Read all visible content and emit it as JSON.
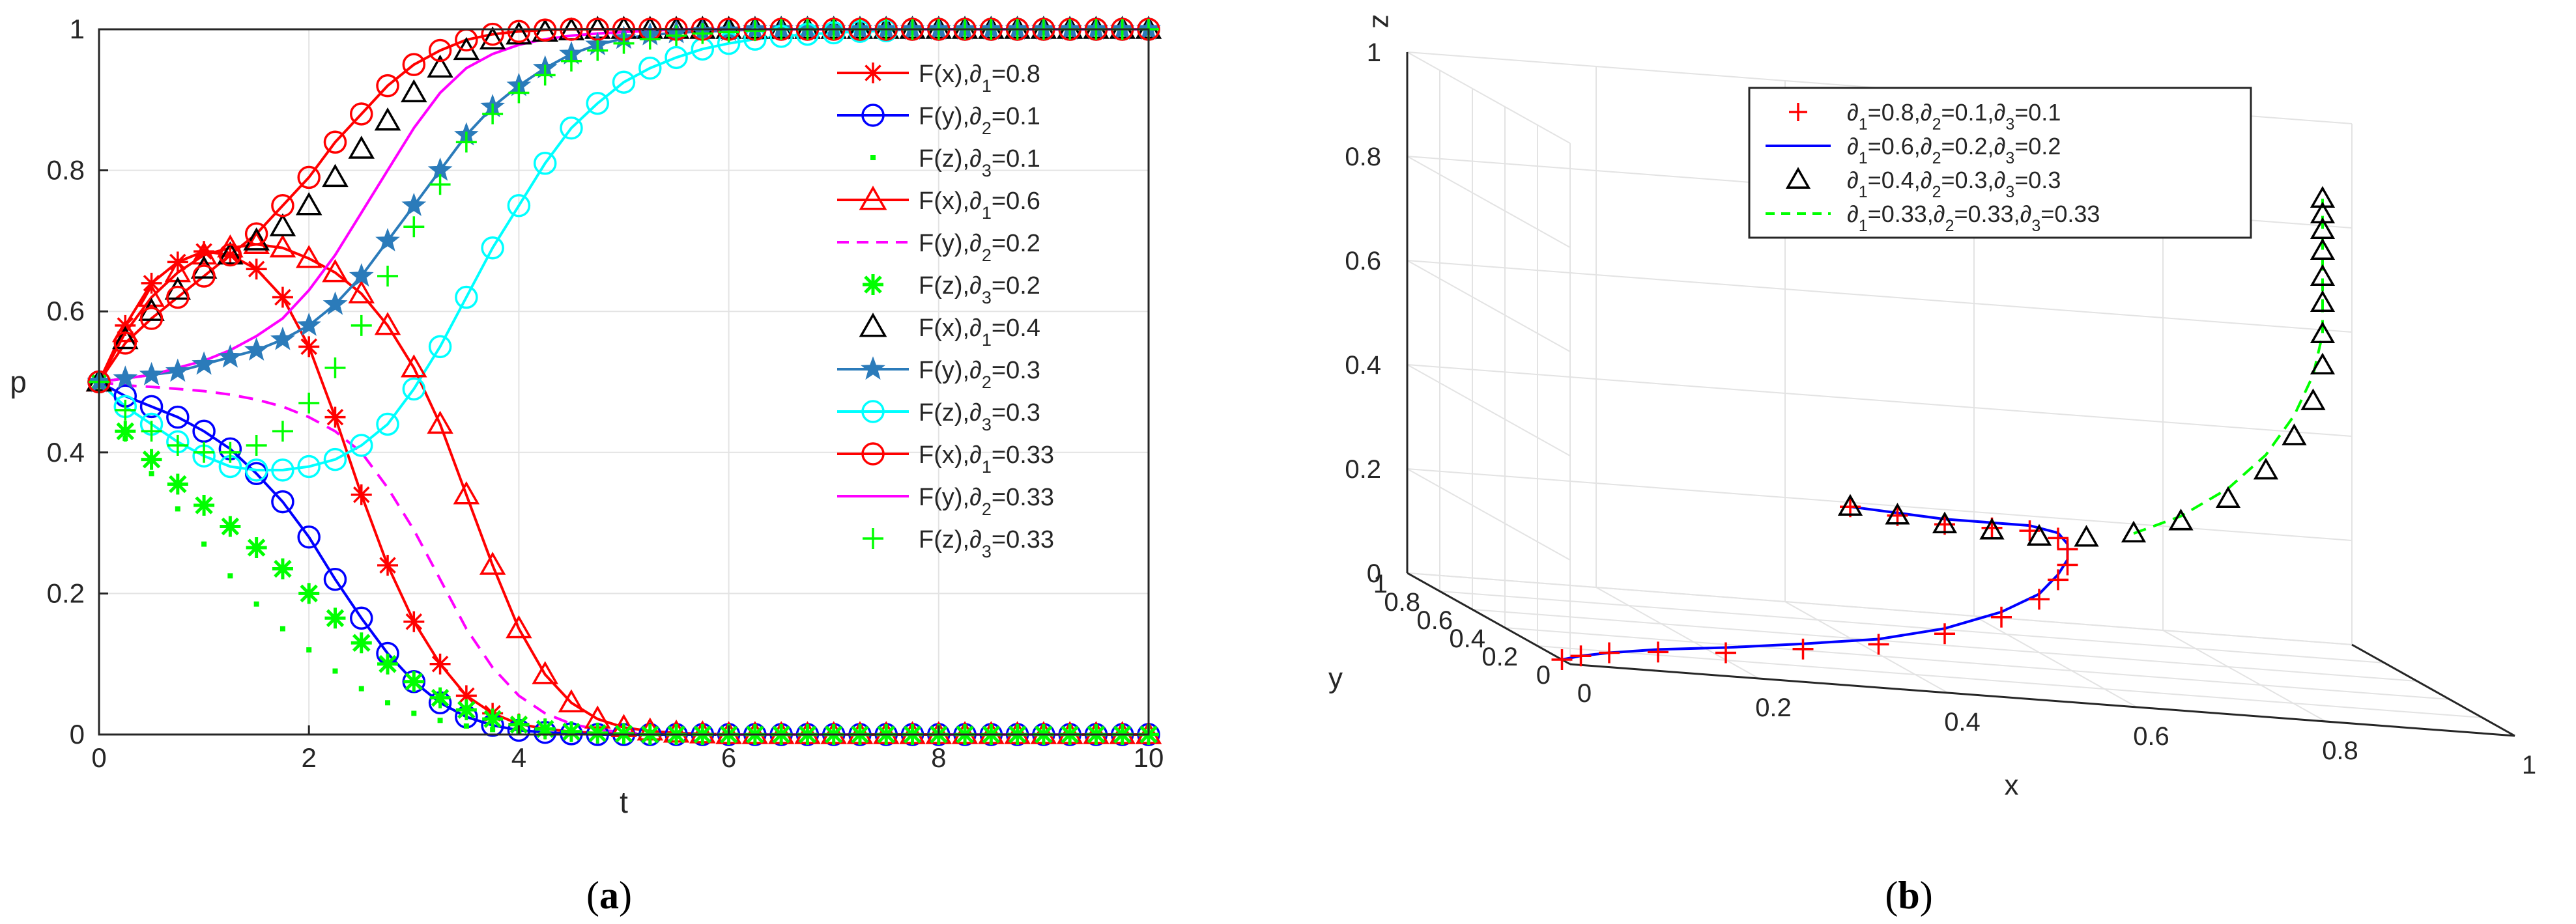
{
  "panel_labels": {
    "a": "a",
    "b": "b"
  },
  "colors": {
    "red": "#ff0000",
    "blue": "#0000ff",
    "green": "#00ff00",
    "black": "#000000",
    "steelblue": "#2b7bba",
    "cyan": "#00ffff",
    "magenta": "#ff00ff",
    "axis": "#262626",
    "grid": "#e3e3e3"
  },
  "chart_data": [
    {
      "type": "line",
      "panel": "a",
      "xlabel": "t",
      "ylabel": "p",
      "xlim": [
        0,
        10
      ],
      "ylim": [
        0,
        1
      ],
      "xticks": [
        "0",
        "2",
        "4",
        "6",
        "8",
        "10"
      ],
      "yticks": [
        "0",
        "0.2",
        "0.4",
        "0.6",
        "0.8",
        "1"
      ],
      "grid": true,
      "legend_position": "top-right",
      "x": [
        0,
        0.25,
        0.5,
        0.75,
        1,
        1.25,
        1.5,
        1.75,
        2,
        2.25,
        2.5,
        2.75,
        3,
        3.25,
        3.5,
        3.75,
        4,
        4.25,
        4.5,
        4.75,
        5,
        5.25,
        5.5,
        5.75,
        6,
        6.25,
        6.5,
        6.75,
        7,
        7.25,
        7.5,
        7.75,
        8,
        8.25,
        8.5,
        8.75,
        9,
        9.25,
        9.5,
        9.75,
        10
      ],
      "series": [
        {
          "name": "F(x),∂1=0.8",
          "color": "#ff0000",
          "marker": "star",
          "values": [
            0.5,
            0.58,
            0.64,
            0.67,
            0.685,
            0.68,
            0.66,
            0.62,
            0.55,
            0.45,
            0.34,
            0.24,
            0.16,
            0.1,
            0.055,
            0.03,
            0.015,
            0.008,
            0.004,
            0.002,
            0.001,
            0,
            0,
            0,
            0,
            0,
            0,
            0,
            0,
            0,
            0,
            0,
            0,
            0,
            0,
            0,
            0,
            0,
            0,
            0,
            0
          ]
        },
        {
          "name": "F(y),∂2=0.1",
          "color": "#0000ff",
          "marker": "circle",
          "values": [
            0.5,
            0.48,
            0.465,
            0.45,
            0.43,
            0.405,
            0.37,
            0.33,
            0.28,
            0.22,
            0.165,
            0.115,
            0.075,
            0.045,
            0.025,
            0.013,
            0.006,
            0.003,
            0.001,
            0,
            0,
            0,
            0,
            0,
            0,
            0,
            0,
            0,
            0,
            0,
            0,
            0,
            0,
            0,
            0,
            0,
            0,
            0,
            0,
            0,
            0
          ]
        },
        {
          "name": "F(z),∂3=0.1",
          "color": "#00ff00",
          "marker": "dot",
          "values": [
            0.5,
            0.42,
            0.37,
            0.32,
            0.27,
            0.225,
            0.185,
            0.15,
            0.12,
            0.09,
            0.065,
            0.045,
            0.03,
            0.02,
            0.012,
            0.007,
            0.004,
            0.002,
            0.001,
            0,
            0,
            0,
            0,
            0,
            0,
            0,
            0,
            0,
            0,
            0,
            0,
            0,
            0,
            0,
            0,
            0,
            0,
            0,
            0,
            0,
            0
          ]
        },
        {
          "name": "F(x),∂1=0.6",
          "color": "#ff0000",
          "marker": "triangle",
          "values": [
            0.5,
            0.57,
            0.62,
            0.655,
            0.68,
            0.69,
            0.695,
            0.69,
            0.675,
            0.655,
            0.625,
            0.58,
            0.52,
            0.44,
            0.34,
            0.24,
            0.15,
            0.085,
            0.045,
            0.022,
            0.01,
            0.005,
            0.002,
            0.001,
            0,
            0,
            0,
            0,
            0,
            0,
            0,
            0,
            0,
            0,
            0,
            0,
            0,
            0,
            0,
            0,
            0
          ]
        },
        {
          "name": "F(y),∂2=0.2",
          "color": "#ff00ff",
          "marker": "dashed",
          "values": [
            0.5,
            0.495,
            0.493,
            0.49,
            0.487,
            0.482,
            0.475,
            0.465,
            0.45,
            0.43,
            0.4,
            0.35,
            0.29,
            0.22,
            0.15,
            0.095,
            0.055,
            0.03,
            0.015,
            0.007,
            0.003,
            0.001,
            0,
            0,
            0,
            0,
            0,
            0,
            0,
            0,
            0,
            0,
            0,
            0,
            0,
            0,
            0,
            0,
            0,
            0,
            0
          ]
        },
        {
          "name": "F(z),∂3=0.2",
          "color": "#00ff00",
          "marker": "asterisk",
          "values": [
            0.5,
            0.43,
            0.39,
            0.355,
            0.325,
            0.295,
            0.265,
            0.235,
            0.2,
            0.165,
            0.13,
            0.1,
            0.075,
            0.052,
            0.035,
            0.022,
            0.014,
            0.008,
            0.004,
            0.002,
            0.001,
            0,
            0,
            0,
            0,
            0,
            0,
            0,
            0,
            0,
            0,
            0,
            0,
            0,
            0,
            0,
            0,
            0,
            0,
            0,
            0
          ]
        },
        {
          "name": "F(x),∂1=0.4",
          "color": "#000000",
          "marker": "triangle",
          "values": [
            0.5,
            0.56,
            0.6,
            0.63,
            0.66,
            0.68,
            0.7,
            0.72,
            0.75,
            0.79,
            0.83,
            0.87,
            0.91,
            0.945,
            0.97,
            0.985,
            0.992,
            0.996,
            0.998,
            1,
            1,
            1,
            1,
            1,
            1,
            1,
            1,
            1,
            1,
            1,
            1,
            1,
            1,
            1,
            1,
            1,
            1,
            1,
            1,
            1,
            1
          ]
        },
        {
          "name": "F(y),∂2=0.3",
          "color": "#2b7bba",
          "marker": "star5",
          "values": [
            0.5,
            0.505,
            0.51,
            0.515,
            0.525,
            0.535,
            0.545,
            0.56,
            0.58,
            0.61,
            0.65,
            0.7,
            0.75,
            0.8,
            0.85,
            0.89,
            0.92,
            0.945,
            0.965,
            0.978,
            0.987,
            0.992,
            0.995,
            0.997,
            0.998,
            1,
            1,
            1,
            1,
            1,
            1,
            1,
            1,
            1,
            1,
            1,
            1,
            1,
            1,
            1,
            1
          ]
        },
        {
          "name": "F(z),∂3=0.3",
          "color": "#00ffff",
          "marker": "circle",
          "values": [
            0.5,
            0.465,
            0.44,
            0.415,
            0.395,
            0.38,
            0.375,
            0.375,
            0.38,
            0.39,
            0.41,
            0.44,
            0.49,
            0.55,
            0.62,
            0.69,
            0.75,
            0.81,
            0.86,
            0.895,
            0.925,
            0.945,
            0.96,
            0.972,
            0.98,
            0.986,
            0.99,
            0.993,
            0.995,
            0.997,
            0.998,
            1,
            1,
            1,
            1,
            1,
            1,
            1,
            1,
            1,
            1
          ]
        },
        {
          "name": "F(x),∂1=0.33",
          "color": "#ff0000",
          "marker": "circle",
          "values": [
            0.5,
            0.555,
            0.59,
            0.62,
            0.65,
            0.68,
            0.71,
            0.75,
            0.79,
            0.84,
            0.88,
            0.92,
            0.95,
            0.97,
            0.985,
            0.993,
            0.997,
            0.999,
            1,
            1,
            1,
            1,
            1,
            1,
            1,
            1,
            1,
            1,
            1,
            1,
            1,
            1,
            1,
            1,
            1,
            1,
            1,
            1,
            1,
            1,
            1
          ]
        },
        {
          "name": "F(y),∂2=0.33",
          "color": "#ff00ff",
          "marker": "solid",
          "values": [
            0.5,
            0.505,
            0.51,
            0.52,
            0.53,
            0.545,
            0.565,
            0.59,
            0.63,
            0.68,
            0.74,
            0.8,
            0.86,
            0.91,
            0.945,
            0.965,
            0.978,
            0.986,
            0.991,
            0.994,
            0.996,
            0.998,
            1,
            1,
            1,
            1,
            1,
            1,
            1,
            1,
            1,
            1,
            1,
            1,
            1,
            1,
            1,
            1,
            1,
            1,
            1
          ]
        },
        {
          "name": "F(z),∂3=0.33",
          "color": "#00ff00",
          "marker": "plus",
          "values": [
            0.5,
            0.46,
            0.43,
            0.41,
            0.4,
            0.4,
            0.41,
            0.43,
            0.47,
            0.52,
            0.58,
            0.65,
            0.72,
            0.78,
            0.84,
            0.88,
            0.91,
            0.935,
            0.955,
            0.97,
            0.98,
            0.986,
            0.991,
            0.994,
            0.996,
            0.998,
            1,
            1,
            1,
            1,
            1,
            1,
            1,
            1,
            1,
            1,
            1,
            1,
            1,
            1,
            1
          ]
        }
      ]
    },
    {
      "type": "line3d",
      "panel": "b",
      "xlabel": "x",
      "ylabel": "y",
      "zlabel": "z",
      "xlim": [
        0,
        1
      ],
      "ylim": [
        0,
        1
      ],
      "zlim": [
        0,
        1
      ],
      "xticks": [
        "0",
        "0.2",
        "0.4",
        "0.6",
        "0.8",
        "1"
      ],
      "yticks": [
        "0",
        "0.2",
        "0.4",
        "0.6",
        "0.8",
        "1"
      ],
      "zticks": [
        "0",
        "0.2",
        "0.4",
        "0.6",
        "0.8",
        "1"
      ],
      "grid": true,
      "legend_position": "top",
      "series": [
        {
          "name": "∂1=0.8,∂2=0.1,∂3=0.1",
          "color": "#ff0000",
          "marker": "plus",
          "x": [
            0,
            0.02,
            0.05,
            0.1,
            0.17,
            0.25,
            0.33,
            0.4,
            0.46,
            0.5,
            0.52,
            0.53,
            0.53,
            0.52,
            0.49,
            0.45,
            0.4,
            0.35,
            0.3
          ],
          "y": [
            0.05,
            0.05,
            0.05,
            0.04,
            0.03,
            0.02,
            0.02,
            0.02,
            0.02,
            0.02,
            0.02,
            0.02,
            0.02,
            0.02,
            0.02,
            0.02,
            0.02,
            0.02,
            0.02
          ],
          "z": [
            0,
            0.01,
            0.02,
            0.03,
            0.04,
            0.06,
            0.08,
            0.11,
            0.15,
            0.19,
            0.23,
            0.26,
            0.29,
            0.31,
            0.32,
            0.32,
            0.32,
            0.33,
            0.34
          ]
        },
        {
          "name": "∂1=0.6,∂2=0.2,∂3=0.2",
          "color": "#0000ff",
          "marker": "solid",
          "x": [
            0,
            0.02,
            0.05,
            0.1,
            0.17,
            0.25,
            0.33,
            0.4,
            0.46,
            0.5,
            0.52,
            0.53,
            0.53,
            0.52,
            0.49,
            0.45,
            0.4,
            0.35,
            0.3
          ],
          "y": [
            0.05,
            0.05,
            0.05,
            0.04,
            0.03,
            0.02,
            0.02,
            0.02,
            0.02,
            0.02,
            0.02,
            0.02,
            0.02,
            0.02,
            0.02,
            0.02,
            0.02,
            0.02,
            0.02
          ],
          "z": [
            0,
            0.01,
            0.02,
            0.035,
            0.05,
            0.07,
            0.09,
            0.12,
            0.16,
            0.2,
            0.24,
            0.27,
            0.3,
            0.32,
            0.33,
            0.33,
            0.33,
            0.335,
            0.34
          ]
        },
        {
          "name": "∂1=0.4,∂2=0.3,∂3=0.3",
          "color": "#000000",
          "marker": "triangle",
          "x": [
            0.3,
            0.35,
            0.4,
            0.45,
            0.5,
            0.55,
            0.6,
            0.65,
            0.7,
            0.74,
            0.77,
            0.79,
            0.8,
            0.8,
            0.8,
            0.8,
            0.8,
            0.8,
            0.8,
            0.8
          ],
          "y": [
            0.02,
            0.02,
            0.02,
            0.02,
            0.02,
            0.02,
            0.02,
            0.02,
            0.02,
            0.02,
            0.02,
            0.02,
            0.02,
            0.02,
            0.02,
            0.02,
            0.02,
            0.02,
            0.02,
            0.02
          ],
          "z": [
            0.34,
            0.33,
            0.32,
            0.315,
            0.31,
            0.315,
            0.33,
            0.36,
            0.41,
            0.47,
            0.54,
            0.61,
            0.68,
            0.74,
            0.8,
            0.85,
            0.9,
            0.94,
            0.97,
            1.0
          ]
        },
        {
          "name": "∂1=0.33,∂2=0.33,∂3=0.33",
          "color": "#00ff00",
          "marker": "dashed",
          "x": [
            0.6,
            0.65,
            0.7,
            0.74,
            0.77,
            0.79,
            0.8,
            0.8,
            0.8,
            0.8
          ],
          "y": [
            0.02,
            0.02,
            0.02,
            0.02,
            0.02,
            0.02,
            0.02,
            0.02,
            0.02,
            0.02
          ],
          "z": [
            0.33,
            0.37,
            0.43,
            0.5,
            0.58,
            0.66,
            0.74,
            0.83,
            0.92,
            1.0
          ]
        }
      ]
    }
  ]
}
